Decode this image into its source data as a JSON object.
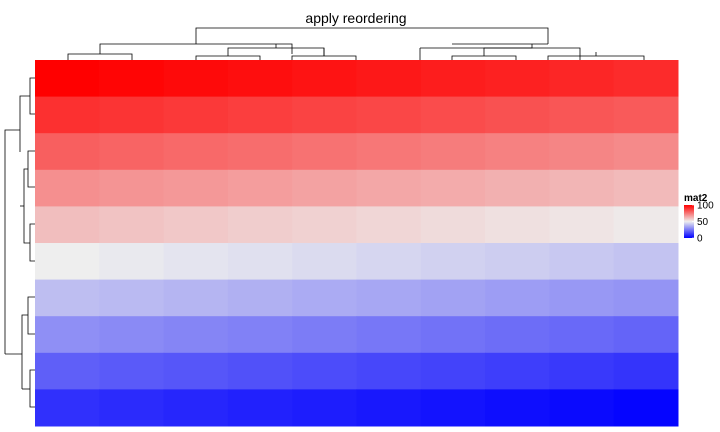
{
  "chart_data": {
    "type": "heatmap",
    "title": "apply reordering",
    "xlabel": "",
    "ylabel": "",
    "legend": {
      "title": "mat2",
      "placement": "right",
      "ticks": [
        100,
        50,
        0
      ],
      "range": [
        0,
        100
      ],
      "colors": {
        "low": "#0000ff",
        "mid": "#eeeeee",
        "high": "#ff0000"
      }
    },
    "dendrograms": {
      "rows": "left",
      "columns": "top"
    },
    "grid": false,
    "n_rows": 10,
    "n_cols": 10,
    "values": [
      [
        100,
        99,
        98,
        97,
        96,
        95,
        94,
        93,
        92,
        91
      ],
      [
        90,
        89,
        88,
        87,
        86,
        85,
        84,
        83,
        82,
        81
      ],
      [
        80,
        79,
        78,
        77,
        76,
        75,
        74,
        73,
        72,
        71
      ],
      [
        70,
        69,
        68,
        67,
        66,
        65,
        64,
        63,
        62,
        61
      ],
      [
        60,
        59,
        58,
        57,
        56,
        55,
        54,
        53,
        52,
        51
      ],
      [
        50,
        49,
        48,
        47,
        46,
        45,
        44,
        43,
        42,
        41
      ],
      [
        40,
        39,
        38,
        37,
        36,
        35,
        34,
        33,
        32,
        31
      ],
      [
        30,
        29,
        28,
        27,
        26,
        25,
        24,
        23,
        22,
        21
      ],
      [
        20,
        19,
        18,
        17,
        16,
        15,
        14,
        13,
        12,
        11
      ],
      [
        10,
        9,
        8,
        7,
        6,
        5,
        4,
        3,
        2,
        1
      ]
    ]
  }
}
